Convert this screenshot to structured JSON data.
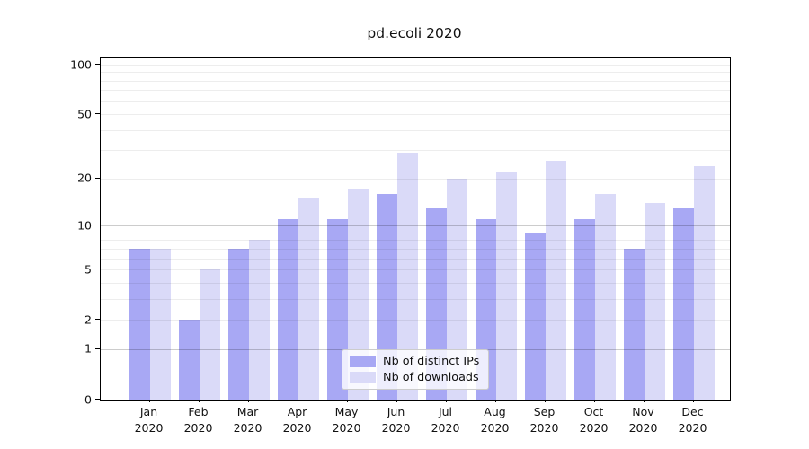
{
  "title": "pd.ecoli 2020",
  "chart_data": {
    "type": "bar",
    "title": "pd.ecoli 2020",
    "categories": [
      "Jan 2020",
      "Feb 2020",
      "Mar 2020",
      "Apr 2020",
      "May 2020",
      "Jun 2020",
      "Jul 2020",
      "Aug 2020",
      "Sep 2020",
      "Oct 2020",
      "Nov 2020",
      "Dec 2020"
    ],
    "months": [
      "Jan",
      "Feb",
      "Mar",
      "Apr",
      "May",
      "Jun",
      "Jul",
      "Aug",
      "Sep",
      "Oct",
      "Nov",
      "Dec"
    ],
    "year": "2020",
    "series": [
      {
        "name": "Nb of distinct IPs",
        "color": "#a8a8f4",
        "values": [
          7,
          2,
          7,
          11,
          11,
          16,
          13,
          11,
          9,
          11,
          7,
          13
        ]
      },
      {
        "name": "Nb of downloads",
        "color": "#dadaf8",
        "values": [
          7,
          5,
          8,
          15,
          17,
          29,
          20,
          22,
          26,
          16,
          14,
          24
        ]
      }
    ],
    "xlabel": "",
    "ylabel": "",
    "yscale": "log1p",
    "ylim": [
      0,
      100
    ],
    "yticks": [
      0,
      1,
      2,
      5,
      10,
      20,
      50,
      100
    ],
    "grid": true,
    "legend_position": "bottom-center"
  },
  "colors": {
    "distinct_ips": "#a8a8f4",
    "downloads": "#dadaf8",
    "grid_minor": "#ededed",
    "grid_major": "#cccccc"
  }
}
